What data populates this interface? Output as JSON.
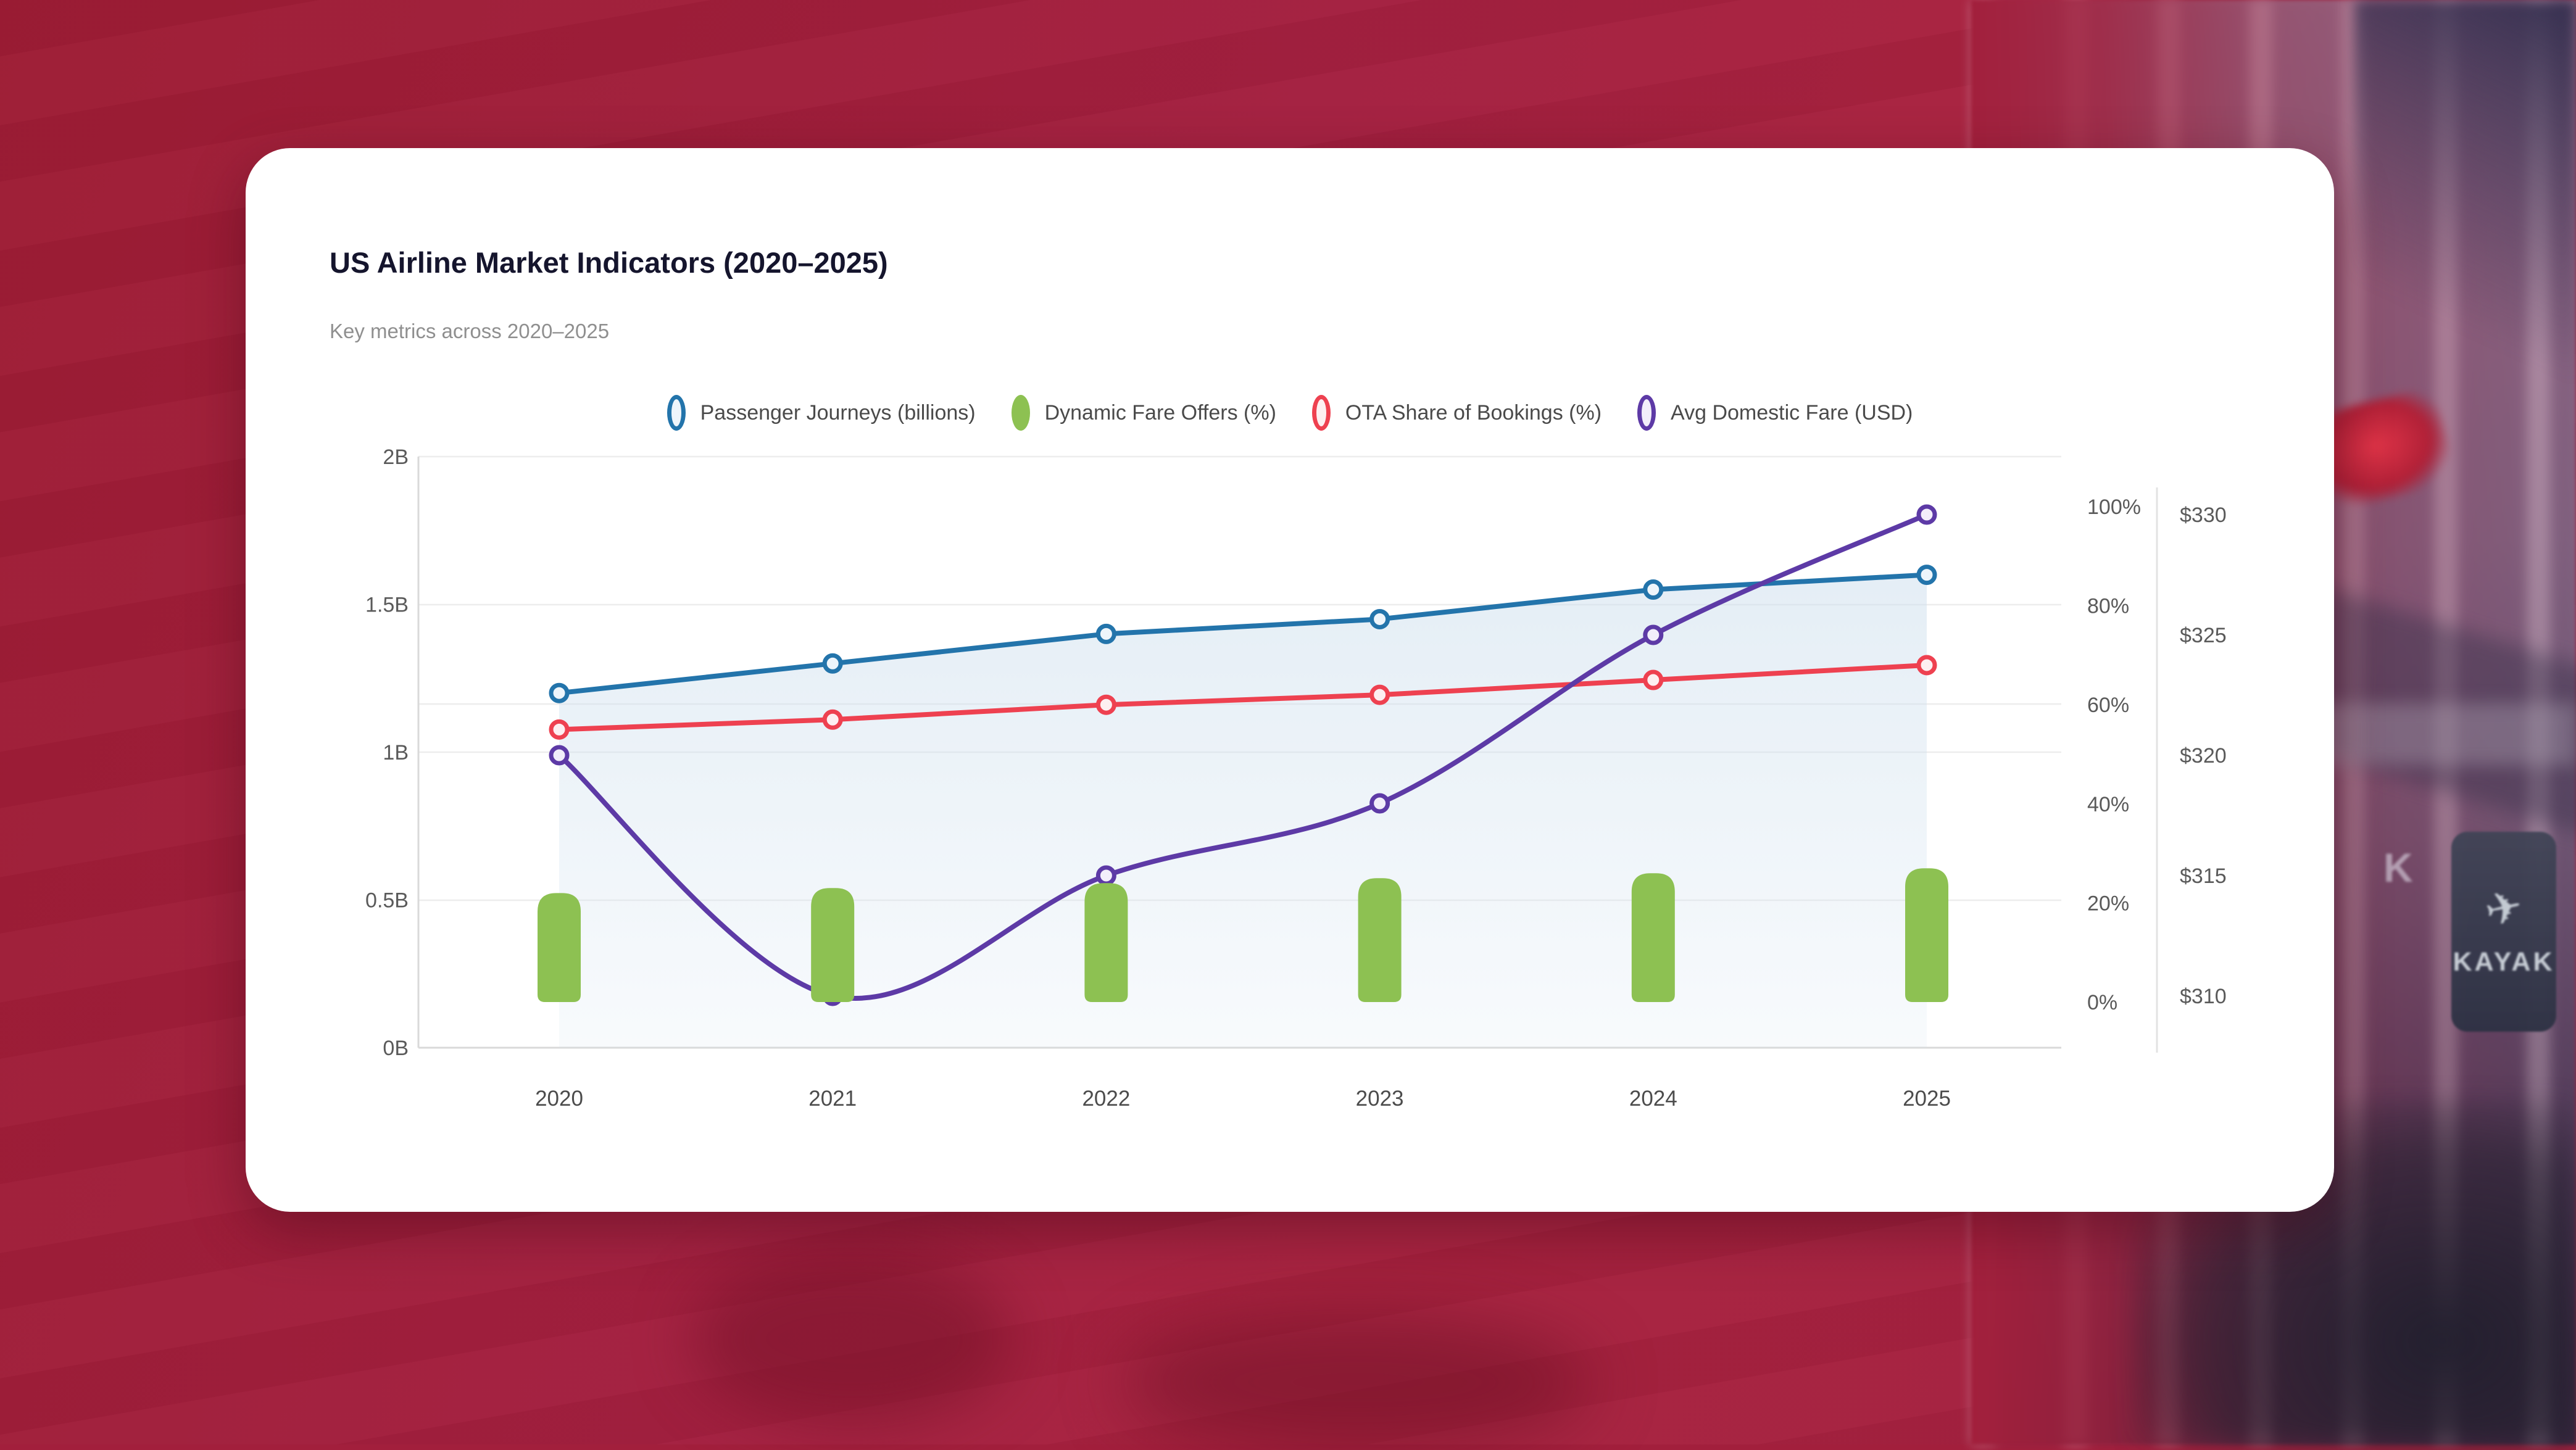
{
  "card": {
    "title": "US Airline Market Indicators (2020–2025)",
    "subtitle": "Key metrics across 2020–2025"
  },
  "background": {
    "kayak_sign": {
      "faint_letter": "K",
      "logo_glyph": "✈",
      "brand": "KAYAK"
    }
  },
  "chart_data": {
    "type": "combo",
    "title": "US Airline Market Indicators (2020–2025)",
    "subtitle": "Key metrics across 2020–2025",
    "categories": [
      "2020",
      "2021",
      "2022",
      "2023",
      "2024",
      "2025"
    ],
    "series": [
      {
        "name": "Passenger Journeys (billions)",
        "type": "line",
        "axis": "billions",
        "color": "#2374ab",
        "marker_fill": "#eef5fb",
        "area_fill": true,
        "values": [
          1.2,
          1.3,
          1.4,
          1.45,
          1.55,
          1.6
        ]
      },
      {
        "name": "Dynamic Fare Offers (%)",
        "type": "bar",
        "axis": "percent",
        "color": "#8dc152",
        "values": [
          22,
          23,
          24,
          25,
          26,
          27
        ]
      },
      {
        "name": "OTA Share of Bookings (%)",
        "type": "line",
        "axis": "percent",
        "color": "#ee4150",
        "marker_fill": "#fdeff1",
        "values": [
          55,
          57,
          60,
          62,
          65,
          68
        ]
      },
      {
        "name": "Avg Domestic Fare (USD)",
        "type": "line",
        "axis": "usd",
        "color": "#5d3aa6",
        "marker_fill": "#f2eefa",
        "smooth": true,
        "values": [
          320,
          310,
          315,
          318,
          325,
          330
        ]
      }
    ],
    "axes": {
      "left_billions": {
        "min": 0,
        "max": 2,
        "ticks": [
          "0B",
          "0.5B",
          "1B",
          "1.5B",
          "2B"
        ]
      },
      "right_percent": {
        "min": 0,
        "max": 100,
        "ticks": [
          "0%",
          "20%",
          "40%",
          "60%",
          "80%",
          "100%"
        ]
      },
      "right_usd": {
        "min": 310,
        "max": 330,
        "ticks": [
          "$310",
          "$315",
          "$320",
          "$325",
          "$330"
        ]
      }
    },
    "legend_position": "top",
    "grid": true,
    "area_fill_color": "#cfe0ee"
  }
}
